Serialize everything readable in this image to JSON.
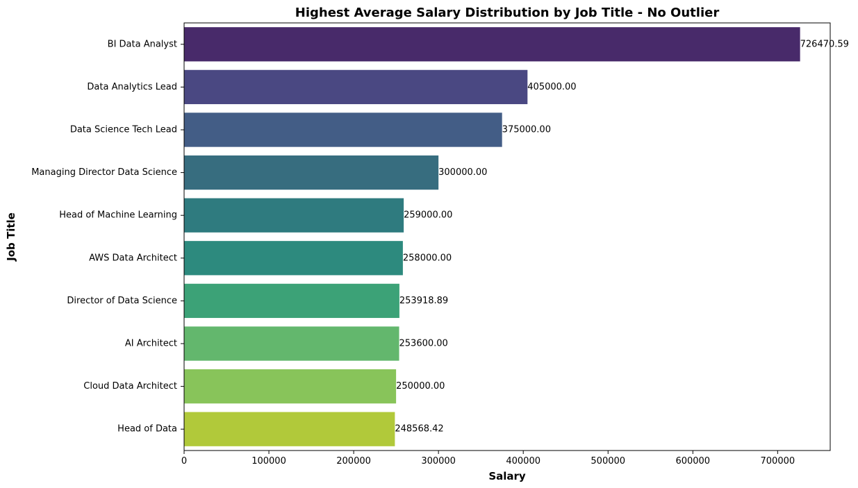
{
  "chart_data": {
    "type": "bar",
    "orientation": "horizontal",
    "title": "Highest Average Salary Distribution by Job Title - No Outlier",
    "xlabel": "Salary",
    "ylabel": "Job Title",
    "xlim": [
      0,
      762000
    ],
    "xticks": [
      0,
      100000,
      200000,
      300000,
      400000,
      500000,
      600000,
      700000
    ],
    "grid": false,
    "legend": "none",
    "categories": [
      "BI Data Analyst",
      "Data Analytics Lead",
      "Data Science Tech Lead",
      "Managing Director Data Science",
      "Head of Machine Learning",
      "AWS Data Architect",
      "Director of Data Science",
      "AI Architect",
      "Cloud Data Architect",
      "Head of Data"
    ],
    "values": [
      726470.59,
      405000.0,
      375000.0,
      300000.0,
      259000.0,
      258000.0,
      253918.89,
      253600.0,
      250000.0,
      248568.42
    ],
    "data_labels": [
      "726470.59",
      "405000.00",
      "375000.00",
      "300000.00",
      "259000.00",
      "258000.00",
      "253918.89",
      "253600.00",
      "250000.00",
      "248568.42"
    ],
    "colors": [
      "#482a6a",
      "#4a4882",
      "#435d86",
      "#376d7f",
      "#2f7b7f",
      "#2d8a7e",
      "#3ca277",
      "#63b76d",
      "#88c45a",
      "#b1c93a"
    ]
  }
}
